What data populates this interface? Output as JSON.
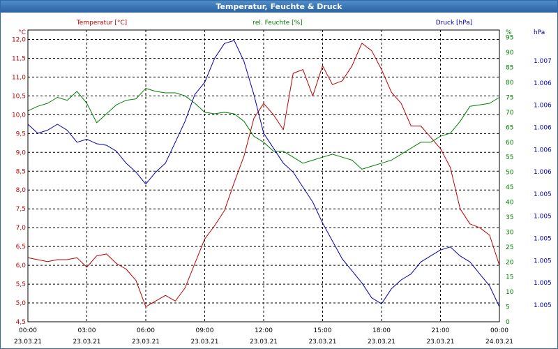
{
  "window": {
    "title": "Temperatur, Feuchte & Druck"
  },
  "chart_data": {
    "type": "line",
    "x_ticks": [
      {
        "time": "00:00",
        "date": "23.03.21"
      },
      {
        "time": "03:00",
        "date": "23.03.21"
      },
      {
        "time": "06:00",
        "date": "23.03.21"
      },
      {
        "time": "09:00",
        "date": "23.03.21"
      },
      {
        "time": "12:00",
        "date": "23.03.21"
      },
      {
        "time": "15:00",
        "date": "23.03.21"
      },
      {
        "time": "18:00",
        "date": "23.03.21"
      },
      {
        "time": "21:00",
        "date": "23.03.21"
      },
      {
        "time": "00:00",
        "date": "24.03.21"
      }
    ],
    "x_range_hours": [
      0,
      24
    ],
    "grid": true,
    "axes": {
      "temperature": {
        "label": "Temperatur [°C]",
        "unit": "°C",
        "color": "#c00000",
        "ylim": [
          4.5,
          12.25
        ],
        "ticks": [
          "12,0",
          "11,5",
          "11,0",
          "10,5",
          "10,0",
          "9,5",
          "9,0",
          "8,5",
          "8,0",
          "7,5",
          "7,0",
          "6,5",
          "6,0",
          "5,5",
          "5,0",
          "4,5"
        ]
      },
      "humidity": {
        "label": "rel. Feuchte [%]",
        "unit": "%",
        "color": "#008000",
        "ylim": [
          0,
          97.5
        ],
        "ticks": [
          "95",
          "90",
          "85",
          "80",
          "75",
          "70",
          "65",
          "60",
          "55",
          "50",
          "45",
          "40",
          "35",
          "30",
          "25",
          "20",
          "15",
          "10",
          "5",
          "0"
        ]
      },
      "pressure": {
        "label": "Druck [hPa]",
        "unit": "hPa",
        "color": "#0000b0",
        "ticks": [
          "1.007",
          "1.006",
          "1.006",
          "1.006",
          "1.006",
          "1.006",
          "1.005",
          "1.005",
          "1.005",
          "1.005",
          "1.005",
          "1.005"
        ]
      }
    },
    "series": [
      {
        "name": "Temperatur [°C]",
        "axis": "temperature",
        "color": "#c00000",
        "points": [
          [
            0,
            6.2
          ],
          [
            0.5,
            6.15
          ],
          [
            1,
            6.1
          ],
          [
            1.5,
            6.15
          ],
          [
            2,
            6.15
          ],
          [
            2.5,
            6.2
          ],
          [
            3,
            5.95
          ],
          [
            3.5,
            6.25
          ],
          [
            4,
            6.3
          ],
          [
            4.5,
            6.05
          ],
          [
            5,
            5.9
          ],
          [
            5.5,
            5.6
          ],
          [
            6,
            4.9
          ],
          [
            6.5,
            5.05
          ],
          [
            7,
            5.2
          ],
          [
            7.5,
            5.05
          ],
          [
            8,
            5.4
          ],
          [
            8.5,
            6.05
          ],
          [
            9,
            6.7
          ],
          [
            9.5,
            7.05
          ],
          [
            10,
            7.45
          ],
          [
            10.5,
            8.2
          ],
          [
            11,
            8.9
          ],
          [
            11.5,
            9.9
          ],
          [
            12,
            10.3
          ],
          [
            12.5,
            10.0
          ],
          [
            13,
            9.6
          ],
          [
            13.5,
            11.1
          ],
          [
            14,
            11.2
          ],
          [
            14.5,
            10.5
          ],
          [
            15,
            11.3
          ],
          [
            15.5,
            10.8
          ],
          [
            16,
            10.9
          ],
          [
            16.5,
            11.3
          ],
          [
            17,
            11.9
          ],
          [
            17.5,
            11.7
          ],
          [
            18,
            11.2
          ],
          [
            18.5,
            10.6
          ],
          [
            19,
            10.3
          ],
          [
            19.5,
            9.7
          ],
          [
            20,
            9.7
          ],
          [
            20.5,
            9.4
          ],
          [
            21,
            9.1
          ],
          [
            21.5,
            8.6
          ],
          [
            22,
            7.5
          ],
          [
            22.5,
            7.1
          ],
          [
            23,
            7.0
          ],
          [
            23.5,
            6.8
          ],
          [
            24,
            6.0
          ]
        ]
      },
      {
        "name": "rel. Feuchte [%]",
        "axis": "humidity",
        "color": "#008000",
        "points": [
          [
            0,
            70.5
          ],
          [
            0.5,
            72
          ],
          [
            1,
            73
          ],
          [
            1.5,
            75
          ],
          [
            2,
            74
          ],
          [
            2.5,
            77
          ],
          [
            3,
            73
          ],
          [
            3.5,
            66.5
          ],
          [
            4,
            69.5
          ],
          [
            4.5,
            72.5
          ],
          [
            5,
            74
          ],
          [
            5.5,
            74.5
          ],
          [
            6,
            78
          ],
          [
            6.5,
            77
          ],
          [
            7,
            76.5
          ],
          [
            7.5,
            76.5
          ],
          [
            8,
            75.5
          ],
          [
            8.5,
            73
          ],
          [
            9,
            70
          ],
          [
            9.5,
            69.5
          ],
          [
            10,
            70
          ],
          [
            10.5,
            69.5
          ],
          [
            11,
            67
          ],
          [
            11.5,
            62
          ],
          [
            12,
            60
          ],
          [
            12.5,
            57
          ],
          [
            13,
            57
          ],
          [
            13.5,
            55
          ],
          [
            14,
            53
          ],
          [
            14.5,
            54
          ],
          [
            15,
            55
          ],
          [
            15.5,
            56
          ],
          [
            16,
            55
          ],
          [
            16.5,
            54
          ],
          [
            17,
            51
          ],
          [
            17.5,
            52
          ],
          [
            18,
            53
          ],
          [
            18.5,
            54
          ],
          [
            19,
            56
          ],
          [
            19.5,
            58
          ],
          [
            20,
            60
          ],
          [
            20.5,
            60
          ],
          [
            21,
            62
          ],
          [
            21.5,
            63
          ],
          [
            22,
            67
          ],
          [
            22.5,
            72
          ],
          [
            23,
            72.5
          ],
          [
            23.5,
            73
          ],
          [
            24,
            75
          ]
        ]
      },
      {
        "name": "Druck [hPa]",
        "axis": "pressure",
        "color": "#0000b0",
        "points": [
          [
            0,
            66
          ],
          [
            0.5,
            63
          ],
          [
            1,
            64
          ],
          [
            1.5,
            66
          ],
          [
            2,
            64
          ],
          [
            2.5,
            60
          ],
          [
            3,
            61
          ],
          [
            3.5,
            59.5
          ],
          [
            4,
            59
          ],
          [
            4.5,
            57
          ],
          [
            5,
            53
          ],
          [
            5.5,
            50
          ],
          [
            6,
            46
          ],
          [
            6.5,
            50
          ],
          [
            7,
            53
          ],
          [
            7.5,
            60
          ],
          [
            8,
            67
          ],
          [
            8.5,
            76
          ],
          [
            9,
            80
          ],
          [
            9.5,
            88
          ],
          [
            10,
            93
          ],
          [
            10.5,
            94
          ],
          [
            11,
            87
          ],
          [
            11.5,
            76
          ],
          [
            12,
            63
          ],
          [
            12.5,
            58
          ],
          [
            13,
            53
          ],
          [
            13.5,
            50
          ],
          [
            14,
            45
          ],
          [
            14.5,
            40
          ],
          [
            15,
            33
          ],
          [
            15.5,
            27
          ],
          [
            16,
            21
          ],
          [
            16.5,
            17
          ],
          [
            17,
            13
          ],
          [
            17.5,
            8
          ],
          [
            18,
            6
          ],
          [
            18.5,
            11
          ],
          [
            19,
            14
          ],
          [
            19.5,
            16
          ],
          [
            20,
            20
          ],
          [
            20.5,
            22
          ],
          [
            21,
            24
          ],
          [
            21.5,
            25
          ],
          [
            22,
            22
          ],
          [
            22.5,
            20
          ],
          [
            23,
            16
          ],
          [
            23.5,
            12
          ],
          [
            24,
            5
          ]
        ]
      }
    ]
  }
}
